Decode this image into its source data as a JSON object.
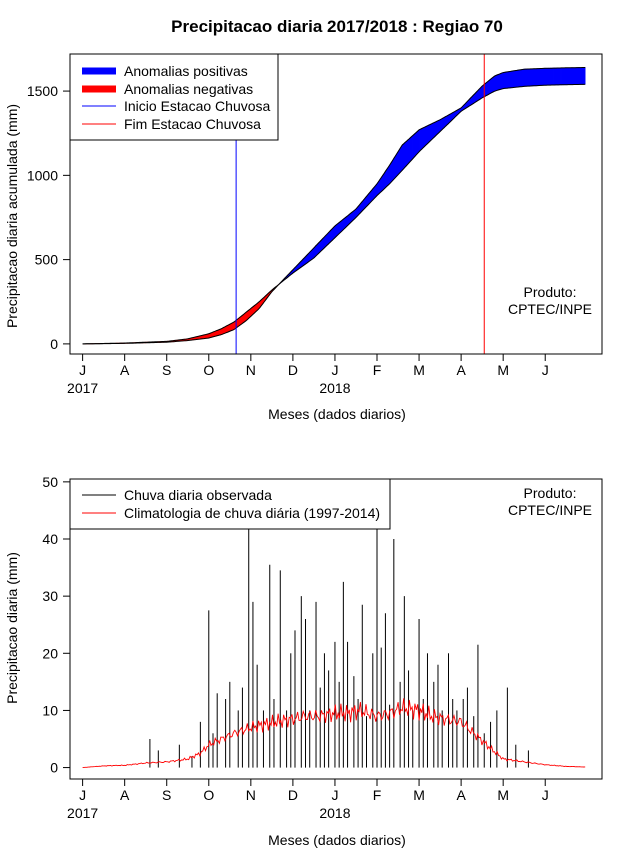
{
  "title": "Precipitacao diaria 2017/2018 : Regiao 70",
  "colors": {
    "positive": "#0000ff",
    "negative": "#ff0000",
    "season_start": "#0000ff",
    "season_end": "#ff0000",
    "observed": "#000000",
    "climatology": "#ff0000"
  },
  "chart_data": [
    {
      "type": "area",
      "ylabel": "Precipitacao diaria acumulada (mm)",
      "xlabel": "Meses (dados diarios)",
      "xticks": [
        "J",
        "A",
        "S",
        "O",
        "N",
        "D",
        "J",
        "F",
        "M",
        "A",
        "M",
        "J"
      ],
      "year_labels": [
        {
          "label": "2017",
          "month_index": 0
        },
        {
          "label": "2018",
          "month_index": 6
        }
      ],
      "yticks": [
        "0",
        "500",
        "1000",
        "1500"
      ],
      "ylim": [
        -60,
        1720
      ],
      "xlim_months": [
        -0.3,
        12.35
      ],
      "legend": {
        "placement": "top-left",
        "items": [
          {
            "label": "Anomalias positivas",
            "kind": "thick",
            "color": "#0000ff"
          },
          {
            "label": "Anomalias negativas",
            "kind": "thick",
            "color": "#ff0000"
          },
          {
            "label": "Inicio Estacao Chuvosa",
            "kind": "thin",
            "color": "#0000ff"
          },
          {
            "label": "Fim Estacao Chuvosa",
            "kind": "thin",
            "color": "#ff0000"
          }
        ]
      },
      "product_label": [
        "Produto:",
        "CPTEC/INPE"
      ],
      "vlines": [
        {
          "name": "Inicio Estacao Chuvosa",
          "month": 3.65,
          "color": "#0000ff"
        },
        {
          "name": "Fim Estacao Chuvosa",
          "month": 9.55,
          "color": "#ff0000"
        }
      ],
      "observed_cumulative": {
        "month": [
          0,
          1,
          2,
          2.5,
          3,
          3.3,
          3.6,
          3.9,
          4.2,
          4.5,
          5,
          5.5,
          6,
          6.5,
          7,
          7.3,
          7.6,
          8,
          8.5,
          9,
          9.5,
          9.8,
          10,
          10.5,
          11,
          11.5,
          11.95
        ],
        "value": [
          0,
          3,
          10,
          20,
          35,
          55,
          85,
          140,
          210,
          310,
          440,
          570,
          700,
          800,
          950,
          1060,
          1180,
          1270,
          1330,
          1400,
          1530,
          1590,
          1610,
          1630,
          1635,
          1638,
          1640
        ]
      },
      "climatology_cumulative": {
        "month": [
          0,
          1,
          2,
          2.5,
          3,
          3.3,
          3.6,
          3.9,
          4.2,
          4.5,
          5,
          5.5,
          6,
          6.5,
          7,
          7.3,
          7.6,
          8,
          8.5,
          9,
          9.5,
          9.8,
          10,
          10.5,
          11,
          11.5,
          11.95
        ],
        "value": [
          0,
          5,
          15,
          30,
          60,
          90,
          130,
          190,
          250,
          320,
          420,
          510,
          630,
          750,
          880,
          950,
          1030,
          1140,
          1260,
          1380,
          1460,
          1500,
          1515,
          1528,
          1535,
          1538,
          1540
        ]
      }
    },
    {
      "type": "bar",
      "ylabel": "Precipitacao diaria (mm)",
      "xlabel": "Meses (dados diarios)",
      "xticks": [
        "J",
        "A",
        "S",
        "O",
        "N",
        "D",
        "J",
        "F",
        "M",
        "A",
        "M",
        "J"
      ],
      "year_labels": [
        {
          "label": "2017",
          "month_index": 0
        },
        {
          "label": "2018",
          "month_index": 6
        }
      ],
      "yticks": [
        "0",
        "10",
        "20",
        "30",
        "40",
        "50"
      ],
      "ylim": [
        -2,
        50.5
      ],
      "xlim_months": [
        -0.3,
        12.35
      ],
      "legend": {
        "placement": "top-left",
        "items": [
          {
            "label": "Chuva diaria observada",
            "kind": "thin",
            "color": "#000000"
          },
          {
            "label": "Climatologia de chuva diária (1997-2014)",
            "kind": "thin",
            "color": "#ff0000"
          }
        ]
      },
      "product_label": [
        "Produto:",
        "CPTEC/INPE"
      ],
      "observed_daily": {
        "month": [
          1.6,
          1.8,
          2.3,
          2.6,
          2.8,
          3.0,
          3.1,
          3.2,
          3.4,
          3.5,
          3.7,
          3.8,
          3.95,
          4.05,
          4.15,
          4.3,
          4.45,
          4.55,
          4.7,
          4.85,
          4.95,
          5.05,
          5.2,
          5.3,
          5.4,
          5.55,
          5.65,
          5.75,
          5.85,
          6.0,
          6.1,
          6.2,
          6.3,
          6.45,
          6.55,
          6.65,
          6.75,
          6.9,
          7.0,
          7.1,
          7.2,
          7.3,
          7.4,
          7.55,
          7.65,
          7.75,
          7.85,
          8.0,
          8.1,
          8.2,
          8.35,
          8.45,
          8.55,
          8.7,
          8.8,
          8.9,
          9.05,
          9.15,
          9.3,
          9.4,
          9.55,
          9.7,
          9.85,
          10.1,
          10.3,
          10.6
        ],
        "value": [
          5,
          3,
          4,
          2,
          8,
          27.5,
          6,
          13,
          12,
          15,
          10,
          14,
          42.5,
          29,
          18,
          10,
          35.5,
          12,
          34.5,
          10,
          20,
          24,
          30,
          26,
          10,
          29,
          14,
          20,
          17,
          22,
          15,
          32.5,
          22,
          16,
          12,
          28.5,
          9,
          20,
          42,
          21,
          27,
          11,
          40,
          15,
          30,
          17,
          10,
          26,
          12,
          20,
          15,
          18,
          10,
          20,
          12,
          10,
          12,
          14,
          9,
          21.5,
          6,
          8,
          10,
          14,
          4,
          3
        ]
      },
      "climatology_daily": {
        "month": [
          0,
          0.5,
          1,
          1.5,
          2,
          2.5,
          2.8,
          3,
          3.3,
          3.6,
          4,
          4.3,
          4.6,
          5,
          5.3,
          5.6,
          6,
          6.3,
          6.6,
          7,
          7.3,
          7.6,
          8,
          8.3,
          8.6,
          9,
          9.3,
          9.6,
          10,
          10.5,
          11,
          11.5,
          11.95
        ],
        "value": [
          0,
          0.3,
          0.4,
          0.8,
          1,
          1.5,
          2.5,
          4,
          5,
          6,
          7,
          7.5,
          8,
          8.5,
          9,
          9,
          9.5,
          9.5,
          10,
          9,
          9.5,
          10.5,
          10,
          9,
          8.5,
          8,
          6,
          4,
          1.5,
          1,
          0.5,
          0.2,
          0.1
        ]
      }
    }
  ]
}
